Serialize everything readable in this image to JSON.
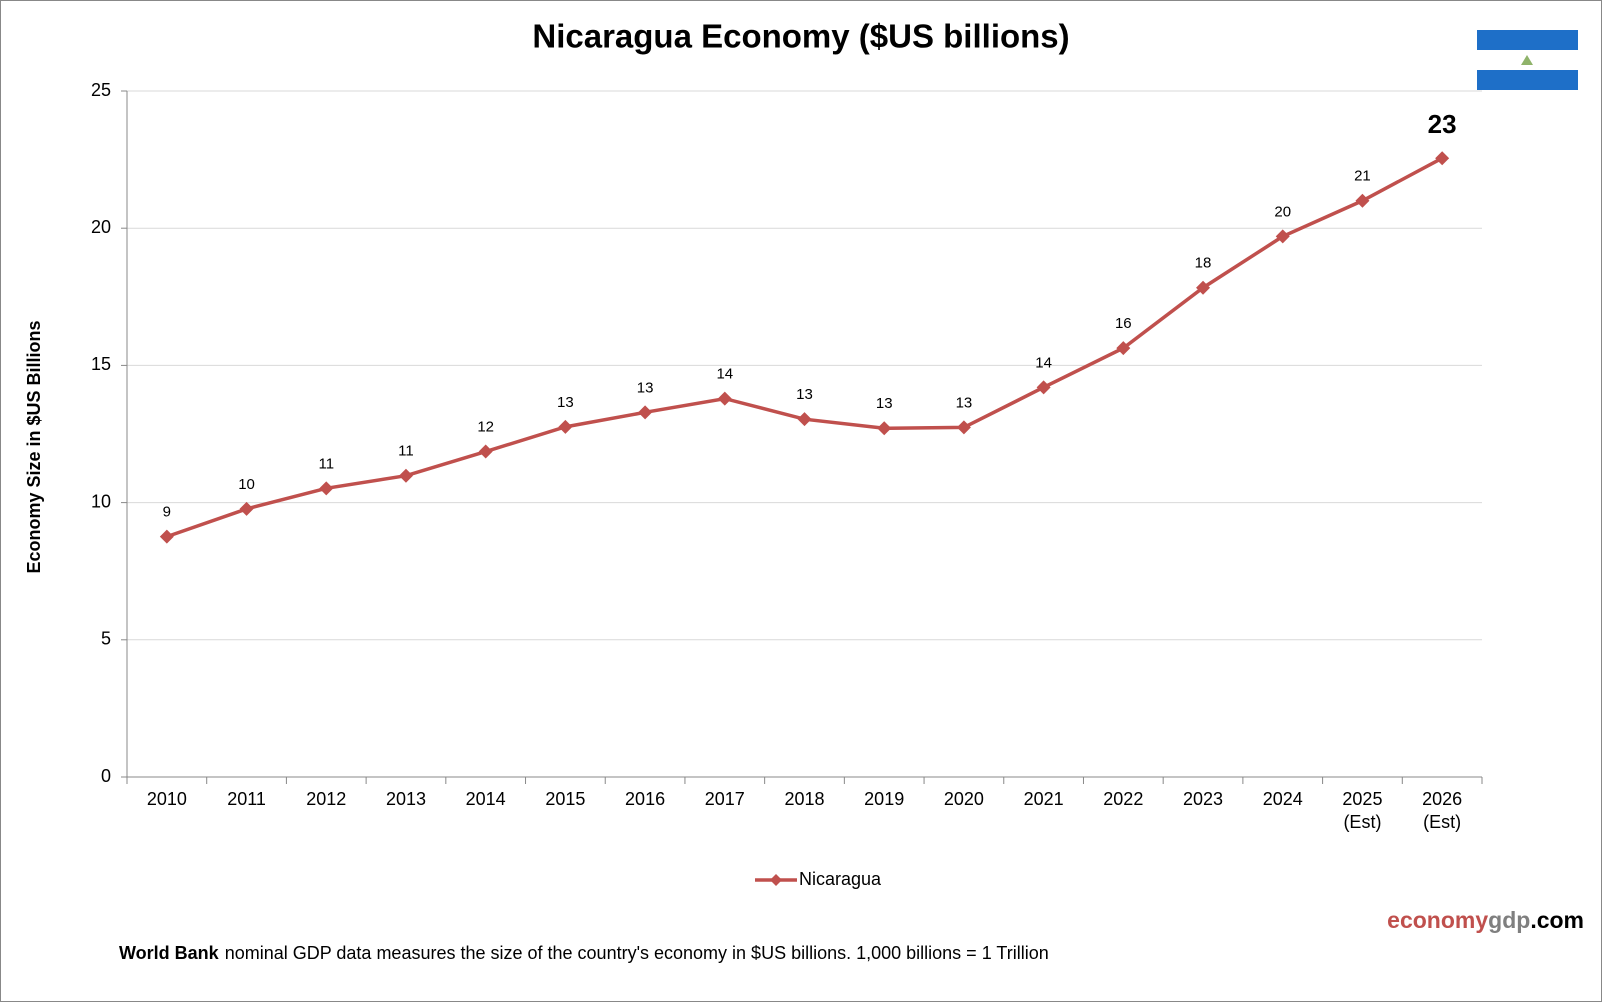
{
  "chart_data": {
    "type": "line",
    "title": "Nicaragua Economy ($US billions)",
    "y_axis_label": "Economy Size in $US Billions",
    "categories": [
      "2010",
      "2011",
      "2012",
      "2013",
      "2014",
      "2015",
      "2016",
      "2017",
      "2018",
      "2019",
      "2020",
      "2021",
      "2022",
      "2023",
      "2024",
      "2025 (Est)",
      "2026 (Est)"
    ],
    "series": [
      {
        "name": "Nicaragua",
        "color": "#c0504d",
        "values": [
          8.76,
          9.77,
          10.52,
          10.98,
          11.86,
          12.76,
          13.29,
          13.79,
          13.04,
          12.71,
          12.74,
          14.2,
          15.63,
          17.83,
          19.7,
          21.0,
          22.55
        ],
        "value_labels": [
          "9",
          "10",
          "11",
          "11",
          "12",
          "13",
          "13",
          "14",
          "13",
          "13",
          "13",
          "14",
          "16",
          "18",
          "20",
          "21",
          "23"
        ]
      }
    ],
    "ylim": [
      0,
      25
    ],
    "yticks": [
      0,
      5,
      10,
      15,
      20,
      25
    ],
    "grid": true,
    "legend": "bottom",
    "watermark": {
      "part1": "economy",
      "part2": "gdp",
      "part3": ".com"
    },
    "footnote": {
      "bold": "World Bank",
      "text": "nominal GDP data  measures the size of the country's economy in $US billions.  1,000 billions = 1 Trillion"
    }
  }
}
